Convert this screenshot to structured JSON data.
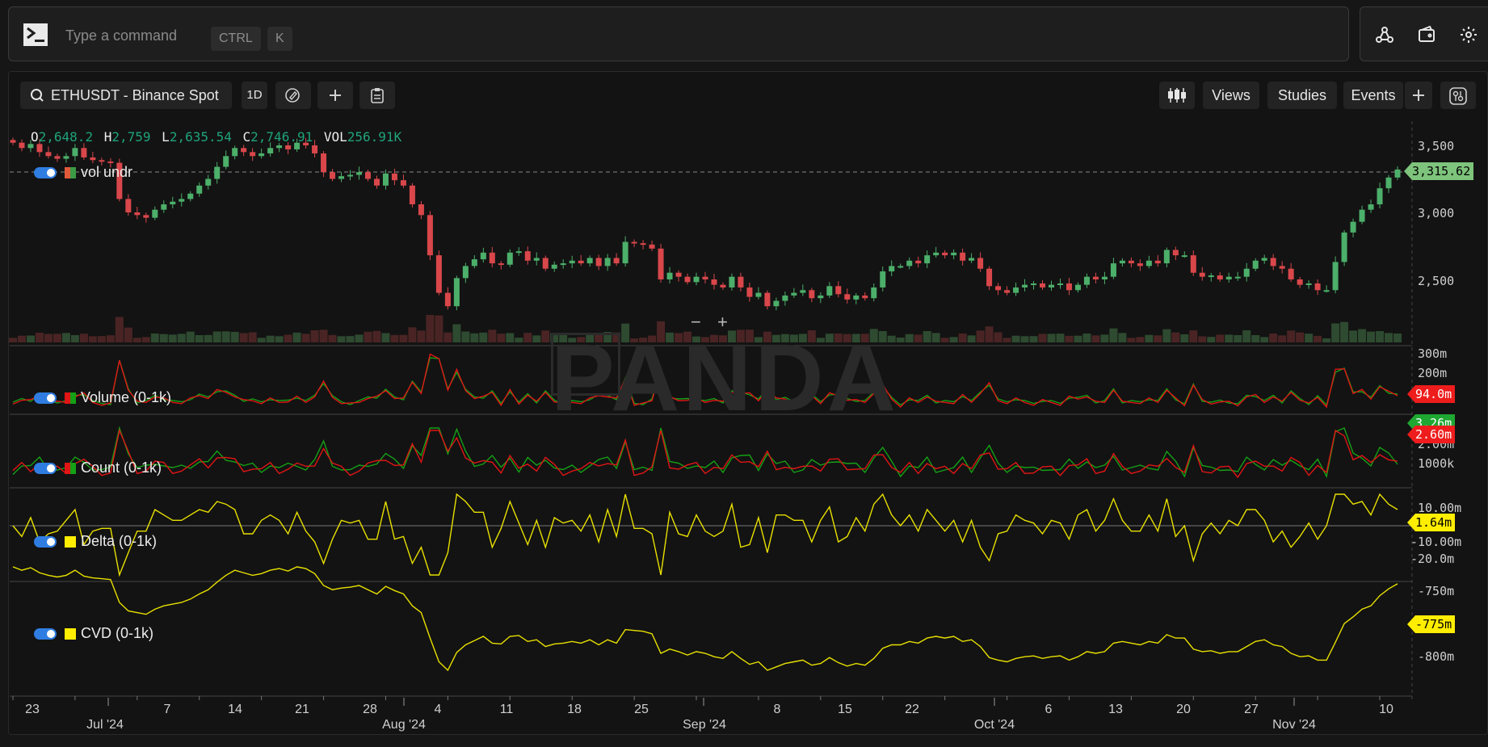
{
  "command_bar": {
    "placeholder": "Type a command",
    "shortcut": [
      "CTRL",
      "K"
    ]
  },
  "top_icons": [
    "share-network-icon",
    "wallet-icon",
    "settings-gear-icon"
  ],
  "toolbar": {
    "symbol": "ETHUSDT - Binance Spot",
    "interval": "1D",
    "right": {
      "views": "Views",
      "studies": "Studies",
      "events": "Events"
    }
  },
  "ohlc": {
    "o_label": "O",
    "o": "2,648.2",
    "h_label": "H",
    "h": "2,759",
    "l_label": "L",
    "l": "2,635.54",
    "c_label": "C",
    "c": "2,746.91",
    "vol_label": "VOL",
    "vol": "256.91K"
  },
  "studies": [
    {
      "label": "vol undr",
      "colors": [
        "#e05a3a",
        "#3a9a45"
      ]
    },
    {
      "label": "Volume (0-1k)",
      "colors": [
        "#e01515",
        "#15a015"
      ]
    },
    {
      "label": "Count (0-1k)",
      "colors": [
        "#e01515",
        "#15a015"
      ]
    },
    {
      "label": "Delta (0-1k)",
      "colors": [
        "#ffee00"
      ]
    },
    {
      "label": "CVD (0-1k)",
      "colors": [
        "#ffee00"
      ]
    }
  ],
  "price_axis": [
    "3,500",
    "3,000",
    "2,500"
  ],
  "price_badge": "3,315.62",
  "volume_axis": [
    "300m",
    "200m"
  ],
  "volume_badge": "94.0m",
  "count_axis": [
    "2.00m",
    "1000k"
  ],
  "count_badges": [
    "3.26m",
    "2.60m"
  ],
  "delta_axis": [
    "10.00m",
    "-10.00m",
    "-20.0m"
  ],
  "delta_badge": "1.64m",
  "cvd_axis": [
    "-750m",
    "-800m"
  ],
  "cvd_badge": "-775m",
  "x_days": [
    "23",
    "7",
    "14",
    "21",
    "28",
    "4",
    "11",
    "18",
    "25",
    "8",
    "15",
    "22",
    "6",
    "13",
    "20",
    "27",
    "10"
  ],
  "x_months": [
    "Jul '24",
    "Aug '24",
    "Sep '24",
    "Oct '24",
    "Nov '24"
  ],
  "watermark": "PANDA",
  "zoom": {
    "minus": "−",
    "plus": "+"
  },
  "colors": {
    "up": "#4caf6a",
    "down": "#d9474b",
    "accent": "#2f7de1",
    "yellow": "#e8e000"
  },
  "chart_data": {
    "type": "candlestick",
    "symbol": "ETHUSDT",
    "interval": "1D",
    "x_range": [
      "2024-06-21",
      "2024-11-11"
    ],
    "ylim": [
      2100,
      3600
    ],
    "close_approx": [
      3520,
      3480,
      3510,
      3450,
      3420,
      3400,
      3420,
      3480,
      3410,
      3390,
      3380,
      3370,
      3100,
      3000,
      2980,
      2960,
      3020,
      3060,
      3080,
      3100,
      3140,
      3200,
      3250,
      3340,
      3420,
      3480,
      3450,
      3420,
      3440,
      3480,
      3500,
      3470,
      3520,
      3500,
      3440,
      3300,
      3250,
      3270,
      3280,
      3300,
      3250,
      3200,
      3290,
      3240,
      3200,
      3060,
      2980,
      2680,
      2400,
      2300,
      2510,
      2600,
      2650,
      2700,
      2620,
      2610,
      2700,
      2710,
      2640,
      2660,
      2580,
      2610,
      2620,
      2640,
      2620,
      2660,
      2600,
      2660,
      2620,
      2780,
      2770,
      2760,
      2730,
      2500,
      2550,
      2520,
      2480,
      2520,
      2500,
      2460,
      2440,
      2520,
      2440,
      2370,
      2400,
      2300,
      2340,
      2380,
      2400,
      2420,
      2360,
      2380,
      2450,
      2390,
      2350,
      2380,
      2360,
      2440,
      2560,
      2600,
      2600,
      2640,
      2620,
      2680,
      2700,
      2680,
      2700,
      2640,
      2660,
      2580,
      2450,
      2420,
      2400,
      2440,
      2460,
      2470,
      2440,
      2460,
      2470,
      2420,
      2460,
      2520,
      2500,
      2520,
      2620,
      2640,
      2620,
      2600,
      2640,
      2620,
      2720,
      2680,
      2680,
      2550,
      2520,
      2530,
      2500,
      2520,
      2520,
      2580,
      2640,
      2660,
      2600,
      2580,
      2500,
      2460,
      2470,
      2420,
      2420,
      2630,
      2850,
      2930,
      3020,
      3060,
      3180,
      3260,
      3320
    ]
  }
}
